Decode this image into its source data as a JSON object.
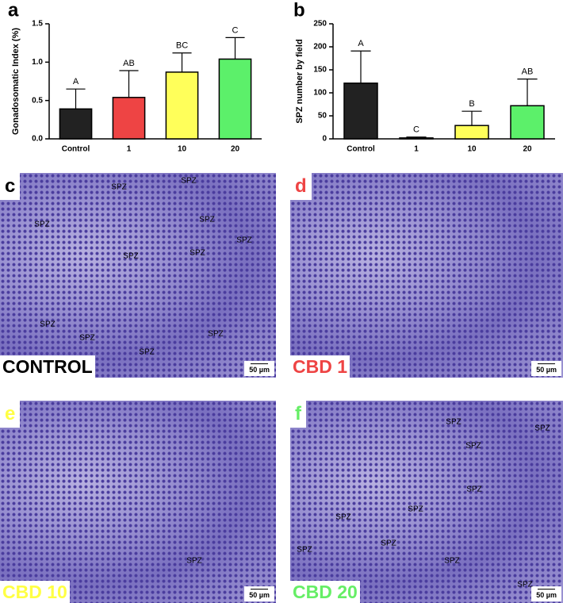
{
  "chart_data": [
    {
      "type": "bar",
      "panel_label": "a",
      "y_label": "Gonadosomatic Index (%)",
      "categories": [
        "Control",
        "1",
        "10",
        "20"
      ],
      "values": [
        0.39,
        0.54,
        0.87,
        1.04
      ],
      "errors": [
        0.26,
        0.35,
        0.25,
        0.28
      ],
      "colors": [
        "#222222",
        "#ee4444",
        "#ffff5a",
        "#5cf06a"
      ],
      "annotations": [
        "A",
        "AB",
        "BC",
        "C"
      ],
      "ylim": [
        0,
        1.5
      ],
      "yticks": [
        {
          "value": 0,
          "label": "0.0"
        },
        0.5,
        {
          "value": 1,
          "label": "1.0"
        },
        1.5
      ]
    },
    {
      "type": "bar",
      "panel_label": "b",
      "y_label": "SPZ number by field",
      "categories": [
        "Control",
        "1",
        "10",
        "20"
      ],
      "values": [
        121,
        2,
        29,
        72
      ],
      "errors": [
        70,
        2,
        31,
        58
      ],
      "colors": [
        "#222222",
        "#ee4444",
        "#ffff5a",
        "#5cf06a"
      ],
      "annotations": [
        "A",
        "C",
        "B",
        "AB"
      ],
      "ylim": [
        0,
        250
      ],
      "yticks": [
        0,
        50,
        100,
        150,
        200,
        250
      ]
    }
  ],
  "panels": [
    {
      "letter": "c",
      "label": "CONTROL",
      "color": "#000000",
      "scale_bar": "50 µm",
      "annotations": [
        "SPZ",
        "SPZ",
        "SPZ",
        "SPZ",
        "SPZ",
        "SPZ",
        "SPZ",
        "SPZ",
        "SPZ",
        "SPZ",
        "SPZ"
      ]
    },
    {
      "letter": "d",
      "label": "CBD 1",
      "color": "#ee4444",
      "scale_bar": "50 µm",
      "annotations": []
    },
    {
      "letter": "e",
      "label": "CBD 10",
      "color": "#ffff44",
      "scale_bar": "50 µm",
      "annotations": [
        "SPZ"
      ]
    },
    {
      "letter": "f",
      "label": "CBD 20",
      "color": "#66ee66",
      "scale_bar": "50 µm",
      "annotations": [
        "SPZ",
        "SPZ",
        "SPZ",
        "SPZ",
        "SPZ",
        "SPZ",
        "SPZ",
        "SPZ",
        "SPZ",
        "SPZ"
      ]
    }
  ]
}
